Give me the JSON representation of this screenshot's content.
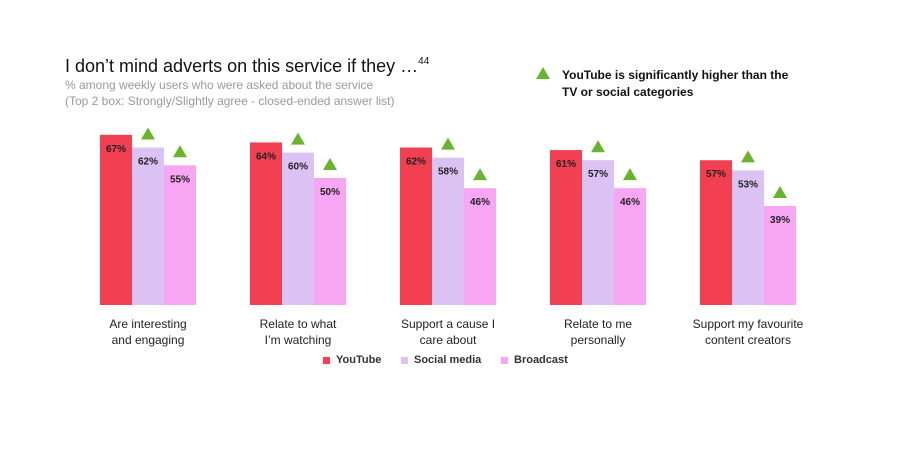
{
  "chart_data": {
    "type": "bar",
    "title": "I don’t mind adverts on this service if they …",
    "title_superscript": "44",
    "subtitle": [
      "% among weekly users who were asked about the service",
      "(Top 2 box: Strongly/Slightly agree - closed-ended answer list)"
    ],
    "annotation": "YouTube is significantly higher than the\nTV or social categories",
    "annotation_color": "#6ab42d",
    "categories": [
      "Are interesting\nand engaging",
      "Relate to what\nI’m watching",
      "Support a cause I\ncare about",
      "Relate to me\npersonally",
      "Support my favourite\ncontent creators"
    ],
    "series": [
      {
        "name": "YouTube",
        "color": "#f23f52",
        "significant": false,
        "values": [
          67,
          64,
          62,
          61,
          57
        ],
        "value_labels": [
          "67%",
          "64%",
          "62%",
          "61%",
          "57%"
        ]
      },
      {
        "name": "Social media",
        "color": "#dcc1f3",
        "significant": true,
        "values": [
          62,
          60,
          58,
          57,
          53
        ],
        "value_labels": [
          "62%",
          "60%",
          "58%",
          "57%",
          "53%"
        ]
      },
      {
        "name": "Broadcast",
        "color": "#f7a6f4",
        "significant": true,
        "values": [
          55,
          50,
          46,
          46,
          39
        ],
        "value_labels": [
          "55%",
          "50%",
          "46%",
          "46%",
          "39%"
        ]
      }
    ]
  }
}
